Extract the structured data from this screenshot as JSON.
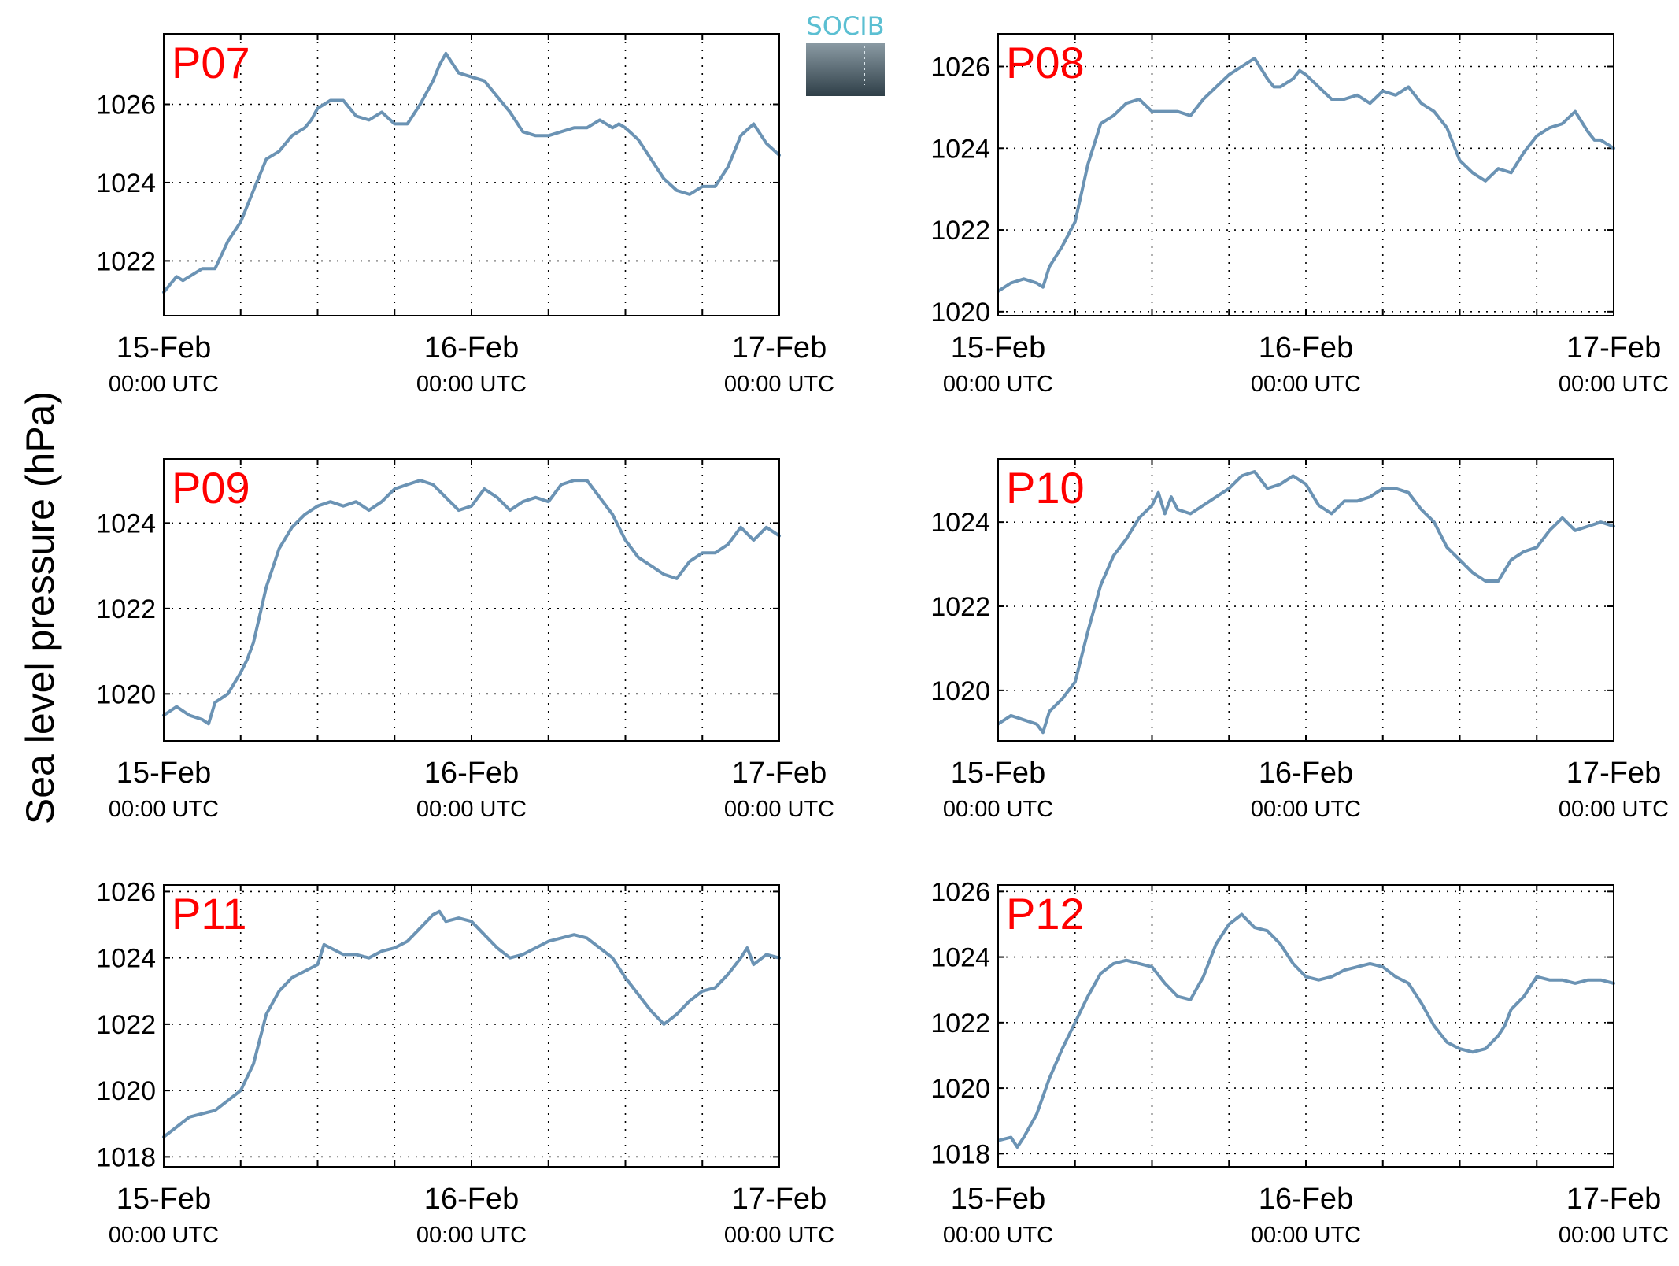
{
  "ylabel": "Sea level pressure (hPa)",
  "logo": {
    "text": "SOCIB",
    "text_color": "#5bbfd2",
    "gradient_top": "#8a9aa3",
    "gradient_bottom": "#2f3f48"
  },
  "colors": {
    "line": "#6b93b4",
    "label": "#ff0000",
    "grid": "#000000",
    "axis": "#000000"
  },
  "xticks": [
    {
      "date": "15-Feb",
      "time": "00:00 UTC"
    },
    {
      "date": "16-Feb",
      "time": "00:00 UTC"
    },
    {
      "date": "17-Feb",
      "time": "00:00 UTC"
    }
  ],
  "chart_data": [
    {
      "type": "line",
      "title": "P07",
      "grid": true,
      "xlim": [
        0,
        48
      ],
      "ylim": [
        1020.6,
        1027.8
      ],
      "yticks": [
        1022,
        1024,
        1026
      ],
      "series": [
        {
          "x": [
            0,
            0.5,
            1,
            1.5,
            2,
            2.5,
            3,
            3.5,
            4,
            5,
            6,
            7,
            8,
            9,
            10,
            11,
            11.5,
            12,
            13,
            14,
            15,
            16,
            17,
            18,
            19,
            20,
            21,
            21.5,
            22,
            23,
            24,
            25,
            26,
            27,
            28,
            29,
            30,
            31,
            32,
            33,
            34,
            35,
            35.5,
            36,
            37,
            38,
            39,
            40,
            41,
            42,
            43,
            44,
            44.5,
            45,
            46,
            47,
            48
          ],
          "y": [
            1021.2,
            1021.4,
            1021.6,
            1021.5,
            1021.6,
            1021.7,
            1021.8,
            1021.8,
            1021.8,
            1022.5,
            1023.0,
            1023.8,
            1024.6,
            1024.8,
            1025.2,
            1025.4,
            1025.6,
            1025.9,
            1026.1,
            1026.1,
            1025.7,
            1025.6,
            1025.8,
            1025.5,
            1025.5,
            1026.0,
            1026.6,
            1027.0,
            1027.3,
            1026.8,
            1026.7,
            1026.6,
            1026.2,
            1025.8,
            1025.3,
            1025.2,
            1025.2,
            1025.3,
            1025.4,
            1025.4,
            1025.6,
            1025.4,
            1025.5,
            1025.4,
            1025.1,
            1024.6,
            1024.1,
            1023.8,
            1023.7,
            1023.9,
            1023.9,
            1024.4,
            1024.8,
            1025.2,
            1025.5,
            1025.0,
            1024.7
          ]
        }
      ]
    },
    {
      "type": "line",
      "title": "P08",
      "grid": true,
      "xlim": [
        0,
        48
      ],
      "ylim": [
        1019.9,
        1026.8
      ],
      "yticks": [
        1020,
        1022,
        1024,
        1026
      ],
      "series": [
        {
          "x": [
            0,
            1,
            2,
            3,
            3.5,
            4,
            5,
            6,
            7,
            8,
            9,
            10,
            11,
            12,
            13,
            14,
            15,
            16,
            17,
            18,
            19,
            20,
            21,
            21.5,
            22,
            23,
            23.5,
            24,
            25,
            26,
            27,
            28,
            29,
            30,
            31,
            32,
            33,
            34,
            35,
            36,
            37,
            38,
            39,
            40,
            41,
            42,
            43,
            44,
            45,
            46,
            46.5,
            47,
            48
          ],
          "y": [
            1020.5,
            1020.7,
            1020.8,
            1020.7,
            1020.6,
            1021.1,
            1021.6,
            1022.2,
            1023.6,
            1024.6,
            1024.8,
            1025.1,
            1025.2,
            1024.9,
            1024.9,
            1024.9,
            1024.8,
            1025.2,
            1025.5,
            1025.8,
            1026.0,
            1026.2,
            1025.7,
            1025.5,
            1025.5,
            1025.7,
            1025.9,
            1025.8,
            1025.5,
            1025.2,
            1025.2,
            1025.3,
            1025.1,
            1025.4,
            1025.3,
            1025.5,
            1025.1,
            1024.9,
            1024.5,
            1023.7,
            1023.4,
            1023.2,
            1023.5,
            1023.4,
            1023.9,
            1024.3,
            1024.5,
            1024.6,
            1024.9,
            1024.4,
            1024.2,
            1024.2,
            1024.0
          ]
        }
      ]
    },
    {
      "type": "line",
      "title": "P09",
      "grid": true,
      "xlim": [
        0,
        48
      ],
      "ylim": [
        1018.9,
        1025.5
      ],
      "yticks": [
        1020,
        1022,
        1024
      ],
      "series": [
        {
          "x": [
            0,
            1,
            2,
            3,
            3.5,
            4,
            5,
            6,
            6.5,
            7,
            8,
            9,
            10,
            11,
            12,
            13,
            14,
            15,
            16,
            17,
            18,
            19,
            20,
            21,
            22,
            23,
            24,
            25,
            26,
            27,
            28,
            29,
            30,
            31,
            32,
            33,
            34,
            35,
            36,
            37,
            38,
            39,
            40,
            41,
            42,
            43,
            44,
            45,
            46,
            47,
            48
          ],
          "y": [
            1019.5,
            1019.7,
            1019.5,
            1019.4,
            1019.3,
            1019.8,
            1020.0,
            1020.5,
            1020.8,
            1021.2,
            1022.5,
            1023.4,
            1023.9,
            1024.2,
            1024.4,
            1024.5,
            1024.4,
            1024.5,
            1024.3,
            1024.5,
            1024.8,
            1024.9,
            1025.0,
            1024.9,
            1024.6,
            1024.3,
            1024.4,
            1024.8,
            1024.6,
            1024.3,
            1024.5,
            1024.6,
            1024.5,
            1024.9,
            1025.0,
            1025.0,
            1024.6,
            1024.2,
            1023.6,
            1023.2,
            1023.0,
            1022.8,
            1022.7,
            1023.1,
            1023.3,
            1023.3,
            1023.5,
            1023.9,
            1023.6,
            1023.9,
            1023.7
          ]
        }
      ]
    },
    {
      "type": "line",
      "title": "P10",
      "grid": true,
      "xlim": [
        0,
        48
      ],
      "ylim": [
        1018.8,
        1025.5
      ],
      "yticks": [
        1020,
        1022,
        1024
      ],
      "series": [
        {
          "x": [
            0,
            1,
            2,
            3,
            3.5,
            4,
            5,
            6,
            7,
            8,
            9,
            10,
            11,
            12,
            12.5,
            13,
            13.5,
            14,
            15,
            16,
            17,
            18,
            19,
            20,
            21,
            22,
            23,
            24,
            25,
            26,
            27,
            28,
            29,
            30,
            31,
            32,
            33,
            34,
            35,
            36,
            37,
            38,
            39,
            40,
            41,
            42,
            43,
            44,
            45,
            46,
            47,
            48
          ],
          "y": [
            1019.2,
            1019.4,
            1019.3,
            1019.2,
            1019.0,
            1019.5,
            1019.8,
            1020.2,
            1021.4,
            1022.5,
            1023.2,
            1023.6,
            1024.1,
            1024.4,
            1024.7,
            1024.2,
            1024.6,
            1024.3,
            1024.2,
            1024.4,
            1024.6,
            1024.8,
            1025.1,
            1025.2,
            1024.8,
            1024.9,
            1025.1,
            1024.9,
            1024.4,
            1024.2,
            1024.5,
            1024.5,
            1024.6,
            1024.8,
            1024.8,
            1024.7,
            1024.3,
            1024.0,
            1023.4,
            1023.1,
            1022.8,
            1022.6,
            1022.6,
            1023.1,
            1023.3,
            1023.4,
            1023.8,
            1024.1,
            1023.8,
            1023.9,
            1024.0,
            1023.9
          ]
        }
      ]
    },
    {
      "type": "line",
      "title": "P11",
      "grid": true,
      "xlim": [
        0,
        48
      ],
      "ylim": [
        1017.7,
        1026.2
      ],
      "yticks": [
        1018,
        1020,
        1022,
        1024,
        1026
      ],
      "series": [
        {
          "x": [
            0,
            1,
            2,
            3,
            4,
            5,
            6,
            7,
            8,
            9,
            10,
            11,
            12,
            12.5,
            13,
            14,
            15,
            16,
            17,
            18,
            19,
            20,
            21,
            21.5,
            22,
            23,
            24,
            25,
            26,
            27,
            28,
            29,
            30,
            31,
            32,
            33,
            34,
            35,
            36,
            37,
            38,
            39,
            40,
            41,
            42,
            43,
            44,
            45,
            45.5,
            46,
            47,
            48
          ],
          "y": [
            1018.6,
            1018.9,
            1019.2,
            1019.3,
            1019.4,
            1019.7,
            1020.0,
            1020.8,
            1022.3,
            1023.0,
            1023.4,
            1023.6,
            1023.8,
            1024.4,
            1024.3,
            1024.1,
            1024.1,
            1024.0,
            1024.2,
            1024.3,
            1024.5,
            1024.9,
            1025.3,
            1025.4,
            1025.1,
            1025.2,
            1025.1,
            1024.7,
            1024.3,
            1024.0,
            1024.1,
            1024.3,
            1024.5,
            1024.6,
            1024.7,
            1024.6,
            1024.3,
            1024.0,
            1023.4,
            1022.9,
            1022.4,
            1022.0,
            1022.3,
            1022.7,
            1023.0,
            1023.1,
            1023.5,
            1024.0,
            1024.3,
            1023.8,
            1024.1,
            1024.0
          ]
        }
      ]
    },
    {
      "type": "line",
      "title": "P12",
      "grid": true,
      "xlim": [
        0,
        48
      ],
      "ylim": [
        1017.6,
        1026.2
      ],
      "yticks": [
        1018,
        1020,
        1022,
        1024,
        1026
      ],
      "series": [
        {
          "x": [
            0,
            1,
            1.5,
            2,
            3,
            4,
            5,
            6,
            7,
            8,
            9,
            10,
            11,
            12,
            13,
            14,
            15,
            16,
            17,
            18,
            19,
            20,
            21,
            22,
            23,
            24,
            25,
            26,
            27,
            28,
            29,
            30,
            31,
            32,
            33,
            34,
            35,
            36,
            37,
            38,
            39,
            39.5,
            40,
            41,
            42,
            43,
            44,
            45,
            46,
            47,
            48
          ],
          "y": [
            1018.4,
            1018.5,
            1018.2,
            1018.5,
            1019.2,
            1020.3,
            1021.2,
            1022.0,
            1022.8,
            1023.5,
            1023.8,
            1023.9,
            1023.8,
            1023.7,
            1023.2,
            1022.8,
            1022.7,
            1023.4,
            1024.4,
            1025.0,
            1025.3,
            1024.9,
            1024.8,
            1024.4,
            1023.8,
            1023.4,
            1023.3,
            1023.4,
            1023.6,
            1023.7,
            1023.8,
            1023.7,
            1023.4,
            1023.2,
            1022.6,
            1021.9,
            1021.4,
            1021.2,
            1021.1,
            1021.2,
            1021.6,
            1021.9,
            1022.4,
            1022.8,
            1023.4,
            1023.3,
            1023.3,
            1023.2,
            1023.3,
            1023.3,
            1023.2
          ]
        }
      ]
    }
  ]
}
